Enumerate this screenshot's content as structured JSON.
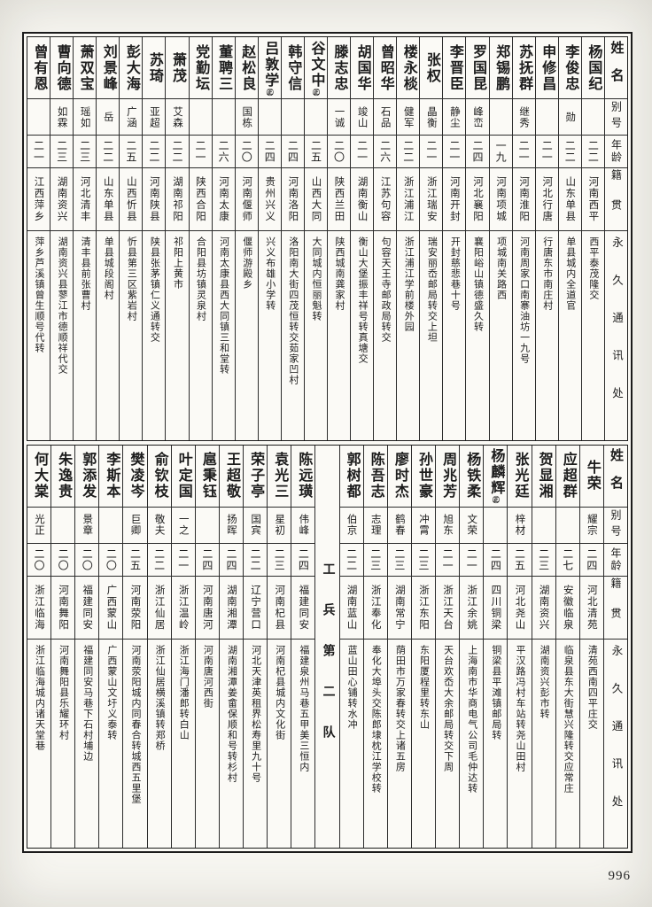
{
  "page": {
    "number": "996"
  },
  "headers": {
    "name": "姓名",
    "alias": "别号",
    "age": "年龄",
    "native": "籍贯",
    "address": "永久通讯处"
  },
  "bands": [
    {
      "entries": [
        {
          "name": "杨国纪",
          "alias": "",
          "age": "二二",
          "native": "河南西平",
          "address": "西平泰茂隆交"
        },
        {
          "name": "李俊忠",
          "alias": "勋",
          "age": "二二",
          "native": "山东单县",
          "address": "单县城内全道官"
        },
        {
          "name": "申修昌",
          "alias": "",
          "age": "二一",
          "native": "河北行唐",
          "address": "行唐东市南庄村"
        },
        {
          "name": "苏抚群",
          "alias": "继秀",
          "age": "二一",
          "native": "河南淮阳",
          "address": "河南周家口南寨油坊一九号"
        },
        {
          "name": "郑锡鹏",
          "alias": "",
          "age": "一九",
          "native": "河南项城",
          "address": "项城南关路西"
        },
        {
          "name": "罗国昆",
          "alias": "峰峦",
          "age": "二四",
          "native": "河北襄阳",
          "address": "襄阳峪山镇德盛久转"
        },
        {
          "name": "李晋臣",
          "alias": "静尘",
          "age": "二一",
          "native": "河南开封",
          "address": "开封慈悲巷十号"
        },
        {
          "name": "张权",
          "alias": "晶衡",
          "age": "二一",
          "native": "浙江瑞安",
          "address": "瑞安丽岙邮局转交上坦"
        },
        {
          "name": "楼永棪",
          "alias": "健军",
          "age": "二二",
          "native": "浙江浦江",
          "address": "浙江浦江学前楼外园"
        },
        {
          "name": "曾昭华",
          "alias": "石品",
          "age": "二六",
          "native": "江苏句容",
          "address": "句容天王寺邮政局转交"
        },
        {
          "name": "胡国华",
          "alias": "竣山",
          "age": "二一",
          "native": "湖南衡山",
          "address": "衡山大堡振丰祥号转真塘交"
        },
        {
          "name": "滕志忠",
          "alias": "一诚",
          "age": "二〇",
          "native": "陕西兰田",
          "address": "陕西城南龚家村"
        },
        {
          "name": "谷文中",
          "mark": "㊣",
          "alias": "",
          "age": "二五",
          "native": "山西大同",
          "address": "大同城内恒丽魁转"
        },
        {
          "name": "韩守信",
          "alias": "",
          "age": "二四",
          "native": "河南洛阳",
          "address": "洛阳南大街四茂恒转交茹家凹村"
        },
        {
          "name": "吕敦学",
          "mark": "㊣",
          "alias": "",
          "age": "二四",
          "native": "贵州兴义",
          "address": "兴义布雄小学转"
        },
        {
          "name": "赵松良",
          "alias": "国栋",
          "age": "二〇",
          "native": "河南偃师",
          "address": "偃师游殿乡"
        },
        {
          "name": "董聘三",
          "alias": "",
          "age": "二六",
          "native": "河南太康",
          "address": "河南太康县西大同镇三和堂转"
        },
        {
          "name": "党勤坛",
          "alias": "",
          "age": "二一",
          "native": "陕西合阳",
          "address": "合阳县坊镇灵泉村"
        },
        {
          "name": "萧茂",
          "alias": "艾森",
          "age": "二二",
          "native": "湖南祁阳",
          "address": "祁阳上黄市"
        },
        {
          "name": "苏琦",
          "alias": "亚超",
          "age": "二二",
          "native": "河南陕县",
          "address": "陕县张茅镇仁义通转交"
        },
        {
          "name": "彭大海",
          "alias": "广涵",
          "age": "二五",
          "native": "山西忻县",
          "address": "忻县第三区紫岩村"
        },
        {
          "name": "刘景峰",
          "alias": "岳",
          "age": "二二",
          "native": "山东单县",
          "address": "单县城段阁村"
        },
        {
          "name": "萧双宝",
          "alias": "瑶如",
          "age": "二三",
          "native": "河北清丰",
          "address": "清丰县前张曹村"
        },
        {
          "name": "曹向德",
          "alias": "如霖",
          "age": "二三",
          "native": "湖南资兴",
          "address": "湖南资兴县蓼江市德顺祥代交"
        },
        {
          "name": "曾有恩",
          "alias": "",
          "age": "二一",
          "native": "江西萍乡",
          "address": "萍乡芦溪镇曾生顺号代转"
        }
      ]
    },
    {
      "entries": [
        {
          "name": "牛荣",
          "alias": "耀宗",
          "age": "二四",
          "native": "河北清苑",
          "address": "清苑西南四平庄交"
        },
        {
          "name": "应超群",
          "alias": "",
          "age": "二七",
          "native": "安徽临泉",
          "address": "临泉县东大街慧兴隆转交应常庄"
        },
        {
          "name": "贺显湘",
          "alias": "",
          "age": "二三",
          "native": "湖南资兴",
          "address": "湖南资兴彭市转"
        },
        {
          "name": "张光廷",
          "alias": "梓材",
          "age": "二五",
          "native": "河北尧山",
          "address": "平汉路冯村车站转尧山田村"
        },
        {
          "name": "杨麟辉",
          "mark": "㊣",
          "alias": "",
          "age": "二四",
          "native": "四川铜梁",
          "address": "铜梁县平滩镇邮局转"
        },
        {
          "name": "杨铁柔",
          "alias": "文荣",
          "age": "二一",
          "native": "浙江余姚",
          "address": "上海南市华商电气公司毛仲达转"
        },
        {
          "name": "周兆芳",
          "alias": "旭东",
          "age": "二一",
          "native": "浙江天台",
          "address": "天台欢岙大余邮局转交下周"
        },
        {
          "name": "孙世豪",
          "alias": "冲霄",
          "age": "二三",
          "native": "浙江东阳",
          "address": "东阳厦程里转东山"
        },
        {
          "name": "廖时杰",
          "alias": "鹤春",
          "age": "二三",
          "native": "湖南常宁",
          "address": "荫田市万家春转交上诸五房"
        },
        {
          "name": "陈吾志",
          "alias": "志理",
          "age": "二三",
          "native": "浙江奉化",
          "address": "奉化大埠头交陈郎埭枕江学校转"
        },
        {
          "name": "郭树都",
          "alias": "伯京",
          "age": "二二",
          "native": "湖南蓝山",
          "address": "蓝山田心铺转水冲"
        },
        {
          "divider": "工兵第二队"
        },
        {
          "name": "陈远璜",
          "alias": "伟峰",
          "age": "二四",
          "native": "福建同安",
          "address": "福建泉州马巷五甲美三恒内"
        },
        {
          "name": "袁光三",
          "alias": "星初",
          "age": "二三",
          "native": "河南杞县",
          "address": "河南杞县城内文化街"
        },
        {
          "name": "荣子亭",
          "alias": "国宾",
          "age": "二二",
          "native": "辽宁营口",
          "address": "河北天津英租界松寿里九十号"
        },
        {
          "name": "王超敬",
          "alias": "扬晖",
          "age": "二四",
          "native": "湖南湘潭",
          "address": "湖南湘潭姜畲保顺和号转杉村"
        },
        {
          "name": "扈秉钰",
          "alias": "",
          "age": "二四",
          "native": "河南唐河",
          "address": "河南唐河西街"
        },
        {
          "name": "叶定国",
          "alias": "一之",
          "age": "二一",
          "native": "浙江温岭",
          "address": "浙江海门潘郎转白山"
        },
        {
          "name": "俞钦枝",
          "alias": "敬夫",
          "age": "二二",
          "native": "浙江仙居",
          "address": "浙江仙居横溪镇转郑桥"
        },
        {
          "name": "樊凌岑",
          "alias": "巨卿",
          "age": "二五",
          "native": "河南荥阳",
          "address": "河南荥阳城内同春合转城西五里堡"
        },
        {
          "name": "李斯本",
          "alias": "",
          "age": "二〇",
          "native": "广西蒙山",
          "address": "广西蒙山文圩义泰转"
        },
        {
          "name": "郭添发",
          "alias": "景章",
          "age": "二〇",
          "native": "福建同安",
          "address": "福建同安马巷下石村埔边"
        },
        {
          "name": "朱逸贵",
          "alias": "",
          "age": "二〇",
          "native": "河南舞阳",
          "address": "河南舞阳县乐耀环村"
        },
        {
          "name": "何大棠",
          "alias": "光正",
          "age": "二〇",
          "native": "浙江临海",
          "address": "浙江临海城内诸天堂巷"
        }
      ]
    }
  ]
}
